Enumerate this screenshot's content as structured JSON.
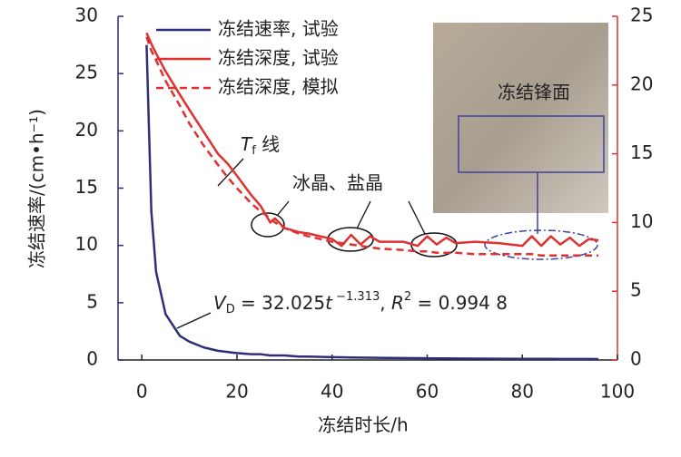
{
  "chart_data": {
    "type": "line",
    "xlabel": "冻结时长/h",
    "ylabel": "冻结速率/(cm•h⁻¹)",
    "x": [
      1,
      2,
      3,
      5,
      8,
      10,
      13,
      16,
      18,
      20,
      23,
      25,
      27,
      28,
      30,
      33,
      35,
      40,
      42,
      44,
      46,
      48,
      50,
      55,
      58,
      60,
      62,
      64,
      66,
      70,
      75,
      80,
      82,
      84,
      86,
      88,
      90,
      92,
      94,
      96
    ],
    "series": [
      {
        "name": "冻结速率, 试验",
        "color": "#2e2e7a",
        "dash": false,
        "axis": "y",
        "values": [
          27.5,
          13,
          7.7,
          4.0,
          2.1,
          1.6,
          1.1,
          0.8,
          0.7,
          0.6,
          0.5,
          0.5,
          0.4,
          0.4,
          0.4,
          0.3,
          0.3,
          0.25,
          0.24,
          0.22,
          0.21,
          0.2,
          0.19,
          0.17,
          0.16,
          0.15,
          0.14,
          0.14,
          0.13,
          0.12,
          0.11,
          0.1,
          0.1,
          0.1,
          0.1,
          0.09,
          0.09,
          0.09,
          0.09,
          0.08
        ]
      },
      {
        "name": "冻结深度, 试验",
        "color": "#e03030",
        "dash": false,
        "axis": "y2",
        "values": [
          23.8,
          23,
          22.3,
          21,
          19.3,
          18.2,
          16.6,
          15,
          14.3,
          13.4,
          12,
          11.2,
          10,
          10.3,
          9.6,
          9.3,
          9.2,
          8.8,
          8.3,
          9.1,
          8.4,
          9.0,
          8.6,
          8.6,
          8.3,
          9.0,
          8.4,
          8.9,
          8.5,
          8.6,
          8.5,
          8.3,
          9.0,
          8.3,
          9.0,
          8.4,
          8.9,
          8.3,
          8.8,
          8.7
        ]
      },
      {
        "name": "冻结深度, 模拟",
        "color": "#e03030",
        "dash": true,
        "axis": "y2",
        "values": [
          23.5,
          22.5,
          21.8,
          20.3,
          18.5,
          17.2,
          15.6,
          14.2,
          13.3,
          12.5,
          11.4,
          10.8,
          10.3,
          10.0,
          9.6,
          9.2,
          9.0,
          8.6,
          8.5,
          8.4,
          8.3,
          8.2,
          8.1,
          8.0,
          7.9,
          7.9,
          7.8,
          7.8,
          7.8,
          7.7,
          7.7,
          7.7,
          7.7,
          7.6,
          7.6,
          7.6,
          7.6,
          7.6,
          7.6,
          7.6
        ]
      }
    ],
    "xlim": [
      -5,
      100
    ],
    "xticks": [
      0,
      20,
      40,
      60,
      80,
      100
    ],
    "ylim": [
      0,
      30
    ],
    "yticks": [
      0,
      5,
      10,
      15,
      20,
      25,
      30
    ],
    "y2lim": [
      0,
      25
    ],
    "y2ticks": [
      0,
      5,
      10,
      15,
      20,
      25
    ],
    "legend": "upper left",
    "annotations": {
      "tf": {
        "main": "T",
        "sub": "f",
        "tail": " 线"
      },
      "crystals": "冰晶、盐晶",
      "front": "冻结锋面",
      "formula": {
        "v": "V",
        "sub": "D",
        "coef": " = 32.025",
        "t": "t",
        "exp": " −1.313",
        "sep": ", ",
        "r": "R",
        "rexp": "2",
        "tail": " = 0.994 8"
      }
    }
  }
}
